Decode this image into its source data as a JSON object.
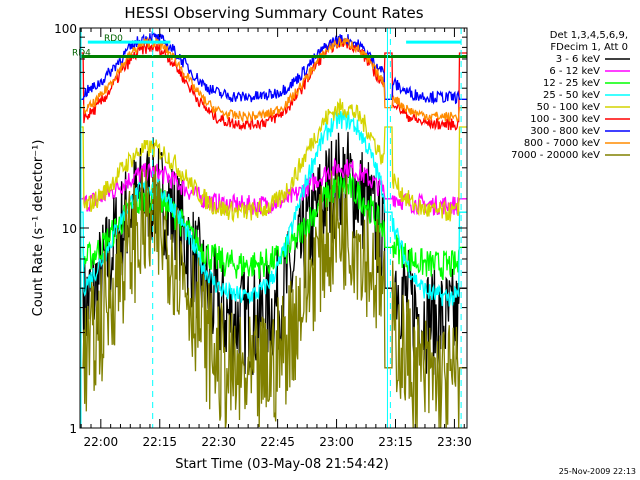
{
  "chart_data": {
    "type": "line",
    "title": "HESSI Observing Summary Count Rates",
    "xlabel": "Start Time (03-May-08 21:54:42)",
    "ylabel": "Count Rate (s⁻¹ detector⁻¹)",
    "yscale": "log",
    "ylim": [
      1,
      100
    ],
    "y_ticks": [
      "1",
      "10",
      "100"
    ],
    "x_ticks": [
      "22:00",
      "22:15",
      "22:30",
      "22:45",
      "23:00",
      "23:15",
      "23:30"
    ],
    "x_tick_minutes": [
      5.3,
      20.3,
      35.3,
      50.3,
      65.3,
      80.3,
      95.3
    ],
    "xlim_minutes": [
      0,
      98.5
    ],
    "footer_date": "25-Nov-2009 22:13",
    "legend_header": [
      "Det 1,3,4,5,6,9,",
      "FDecim 1, Att 0"
    ],
    "legend_position": "right",
    "series": [
      {
        "name": "3 - 6 keV",
        "color": "#000000",
        "peak_minutes": [
          18,
          67
        ],
        "peak_values": [
          15,
          17
        ],
        "base": 3.4,
        "noise": 0.35,
        "gap_value": 5
      },
      {
        "name": "6 - 12 keV",
        "color": "#ff00ff",
        "peak_minutes": [
          18,
          67
        ],
        "peak_values": [
          19,
          20
        ],
        "base": 13,
        "noise": 0.1,
        "gap_value": 14
      },
      {
        "name": "12 - 25 keV",
        "color": "#00ff00",
        "peak_minutes": [
          18,
          67
        ],
        "peak_values": [
          14,
          16
        ],
        "base": 6.5,
        "noise": 0.15,
        "gap_value": 8
      },
      {
        "name": "25 - 50 keV",
        "color": "#00ffff",
        "peak_minutes": [
          18,
          67
        ],
        "peak_values": [
          16,
          35
        ],
        "base": 4.5,
        "noise": 0.1,
        "gap_value": 12
      },
      {
        "name": "50 - 100 keV",
        "color": "#d4d400",
        "peak_minutes": [
          18,
          67
        ],
        "peak_values": [
          25,
          40
        ],
        "base": 12,
        "noise": 0.1,
        "gap_value": 32
      },
      {
        "name": "100 - 300 keV",
        "color": "#ff0000",
        "peak_minutes": [
          18,
          67
        ],
        "peak_values": [
          80,
          85
        ],
        "base": 33,
        "noise": 0.06,
        "gap_value": 75
      },
      {
        "name": "300 - 800 keV",
        "color": "#0000ff",
        "peak_minutes": [
          18,
          67
        ],
        "peak_values": [
          90,
          88
        ],
        "base": 45,
        "noise": 0.06,
        "gap_value": 44
      },
      {
        "name": "800 - 7000 keV",
        "color": "#ff8c00",
        "peak_minutes": [
          18,
          67
        ],
        "peak_values": [
          85,
          85
        ],
        "base": 36,
        "noise": 0.05,
        "gap_value": 40
      },
      {
        "name": "7000 - 20000 keV",
        "color": "#808000",
        "peak_minutes": [
          18,
          67
        ],
        "peak_values": [
          10,
          10
        ],
        "base": 1.7,
        "noise": 0.4,
        "gap_value": 2
      }
    ],
    "reference_lines": [
      {
        "label": "RD0",
        "value": 85,
        "color": "#00ffff",
        "segments": [
          [
            2,
            23
          ],
          [
            83,
            97
          ]
        ]
      },
      {
        "label": "RD4",
        "value": 72,
        "color": "#008000",
        "segments": [
          [
            0,
            98.5
          ]
        ]
      }
    ],
    "vertical_markers_minutes": [
      18.5,
      79,
      97
    ],
    "saa_edges_minutes": [
      0,
      78
    ]
  }
}
